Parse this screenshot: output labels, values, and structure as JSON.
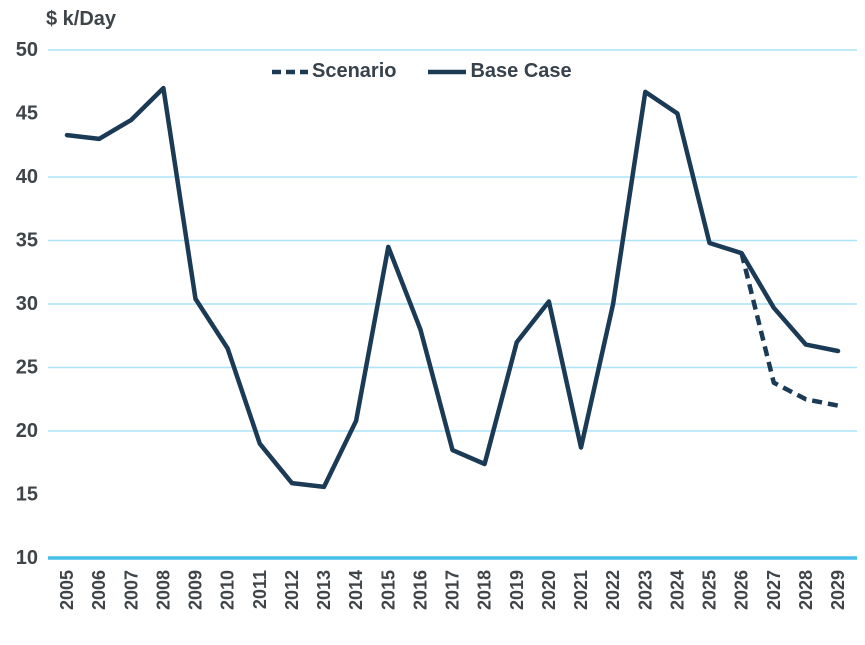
{
  "title": "$ k/Day",
  "colors": {
    "series": "#1b3a55",
    "gridline": "#a9e4f7",
    "axis_line": "#46bfe9",
    "axis_text": "#3f4448",
    "legend_text": "#37424c",
    "background": "#ffffff"
  },
  "chart_data": {
    "type": "line",
    "title": "$ k/Day",
    "ylabel": "$ k/Day",
    "xlabel": "",
    "x": [
      2005,
      2006,
      2007,
      2008,
      2009,
      2010,
      2011,
      2012,
      2013,
      2014,
      2015,
      2016,
      2017,
      2018,
      2019,
      2020,
      2021,
      2022,
      2023,
      2024,
      2025,
      2026,
      2027,
      2028,
      2029
    ],
    "series": [
      {
        "name": "Base Case",
        "style": "solid",
        "values": [
          43.3,
          43.0,
          44.5,
          47.0,
          30.4,
          26.5,
          19.0,
          15.9,
          15.6,
          20.8,
          34.5,
          28.0,
          18.5,
          17.4,
          27.0,
          30.2,
          18.7,
          30.0,
          46.7,
          45.0,
          34.8,
          34.0,
          29.7,
          26.8,
          26.3
        ]
      },
      {
        "name": "Scenario",
        "style": "dashed",
        "values": [
          null,
          null,
          null,
          null,
          null,
          null,
          null,
          null,
          null,
          null,
          null,
          null,
          null,
          null,
          null,
          null,
          null,
          null,
          null,
          null,
          null,
          34.0,
          23.8,
          22.5,
          22.0
        ]
      }
    ],
    "ylim": [
      10,
      50
    ],
    "yticks": [
      10,
      15,
      20,
      25,
      30,
      35,
      40,
      45,
      50
    ],
    "gridlines": [
      20,
      25,
      30,
      35,
      40,
      50
    ],
    "x_axis_value": 10,
    "grid": true,
    "legend_position": "top-center",
    "x_tick_rotation": -90
  }
}
